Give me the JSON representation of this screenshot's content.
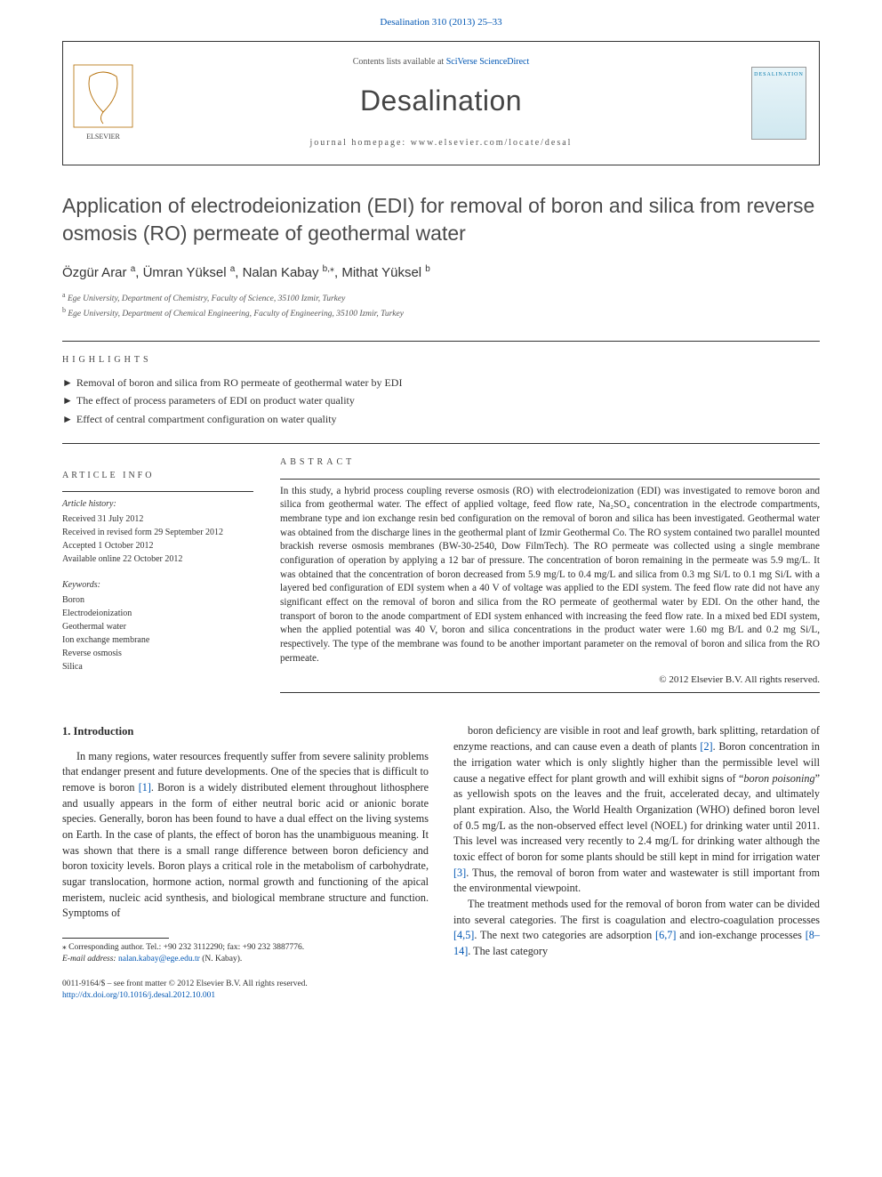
{
  "journal_ref": "Desalination 310 (2013) 25–33",
  "header": {
    "contents_prefix": "Contents lists available at ",
    "contents_link": "SciVerse ScienceDirect",
    "journal_name": "Desalination",
    "homepage_label": "journal homepage: www.elsevier.com/locate/desal",
    "cover_label": "DESALINATION"
  },
  "title": "Application of electrodeionization (EDI) for removal of boron and silica from reverse osmosis (RO) permeate of geothermal water",
  "authors": [
    {
      "name": "Özgür Arar",
      "sup": "a"
    },
    {
      "name": "Ümran Yüksel",
      "sup": "a"
    },
    {
      "name": "Nalan Kabay",
      "sup": "b,",
      "corr": true
    },
    {
      "name": "Mithat Yüksel",
      "sup": "b"
    }
  ],
  "affiliations": [
    {
      "sup": "a",
      "text": "Ege University, Department of Chemistry, Faculty of Science, 35100 Izmir, Turkey"
    },
    {
      "sup": "b",
      "text": "Ege University, Department of Chemical Engineering, Faculty of Engineering, 35100 Izmir, Turkey"
    }
  ],
  "highlights_head": "HIGHLIGHTS",
  "highlights": [
    "Removal of boron and silica from RO permeate of geothermal water by EDI",
    "The effect of process parameters of EDI on product water quality",
    "Effect of central compartment configuration on water quality"
  ],
  "article_info_head": "ARTICLE INFO",
  "article_history_head": "Article history:",
  "article_history": [
    "Received 31 July 2012",
    "Received in revised form 29 September 2012",
    "Accepted 1 October 2012",
    "Available online 22 October 2012"
  ],
  "keywords_head": "Keywords:",
  "keywords": [
    "Boron",
    "Electrodeionization",
    "Geothermal water",
    "Ion exchange membrane",
    "Reverse osmosis",
    "Silica"
  ],
  "abstract_head": "ABSTRACT",
  "abstract": "In this study, a hybrid process coupling reverse osmosis (RO) with electrodeionization (EDI) was investigated to remove boron and silica from geothermal water. The effect of applied voltage, feed flow rate, Na₂SO₄ concentration in the electrode compartments, membrane type and ion exchange resin bed configuration on the removal of boron and silica has been investigated. Geothermal water was obtained from the discharge lines in the geothermal plant of Izmir Geothermal Co. The RO system contained two parallel mounted brackish reverse osmosis membranes (BW-30-2540, Dow FilmTech). The RO permeate was collected using a single membrane configuration of operation by applying a 12 bar of pressure. The concentration of boron remaining in the permeate was 5.9 mg/L. It was obtained that the concentration of boron decreased from 5.9 mg/L to 0.4 mg/L and silica from 0.3 mg Si/L to 0.1 mg Si/L with a layered bed configuration of EDI system when a 40 V of voltage was applied to the EDI system. The feed flow rate did not have any significant effect on the removal of boron and silica from the RO permeate of geothermal water by EDI. On the other hand, the transport of boron to the anode compartment of EDI system enhanced with increasing the feed flow rate. In a mixed bed EDI system, when the applied potential was 40 V, boron and silica concentrations in the product water were 1.60 mg B/L and 0.2 mg Si/L, respectively. The type of the membrane was found to be another important parameter on the removal of boron and silica from the RO permeate.",
  "copyright": "© 2012 Elsevier B.V. All rights reserved.",
  "intro_head": "1. Introduction",
  "intro_p1": "In many regions, water resources frequently suffer from severe salinity problems that endanger present and future developments. One of the species that is difficult to remove is boron [1]. Boron is a widely distributed element throughout lithosphere and usually appears in the form of either neutral boric acid or anionic borate species. Generally, boron has been found to have a dual effect on the living systems on Earth. In the case of plants, the effect of boron has the unambiguous meaning. It was shown that there is a small range difference between boron deficiency and boron toxicity levels. Boron plays a critical role in the metabolism of carbohydrate, sugar translocation, hormone action, normal growth and functioning of the apical meristem, nucleic acid synthesis, and biological membrane structure and function. Symptoms of",
  "intro_p2": "boron deficiency are visible in root and leaf growth, bark splitting, retardation of enzyme reactions, and can cause even a death of plants [2]. Boron concentration in the irrigation water which is only slightly higher than the permissible level will cause a negative effect for plant growth and will exhibit signs of \"boron poisoning\" as yellowish spots on the leaves and the fruit, accelerated decay, and ultimately plant expiration. Also, the World Health Organization (WHO) defined boron level of 0.5 mg/L as the non-observed effect level (NOEL) for drinking water until 2011. This level was increased very recently to 2.4 mg/L for drinking water although the toxic effect of boron for some plants should be still kept in mind for irrigation water [3]. Thus, the removal of boron from water and wastewater is still important from the environmental viewpoint.",
  "intro_p3": "The treatment methods used for the removal of boron from water can be divided into several categories. The first is coagulation and electro-coagulation processes [4,5]. The next two categories are adsorption [6,7] and ion-exchange processes [8–14]. The last category",
  "footnote_corr": "⁎ Corresponding author. Tel.: +90 232 3112290; fax: +90 232 3887776.",
  "footnote_email_label": "E-mail address:",
  "footnote_email": "nalan.kabay@ege.edu.tr",
  "footnote_email_who": "(N. Kabay).",
  "bottom_left_1": "0011-9164/$ – see front matter © 2012 Elsevier B.V. All rights reserved.",
  "bottom_left_2": "http://dx.doi.org/10.1016/j.desal.2012.10.001",
  "colors": {
    "link": "#0056b3",
    "text": "#2a2a2a",
    "heading": "#4a4a4a",
    "rule": "#333333"
  }
}
